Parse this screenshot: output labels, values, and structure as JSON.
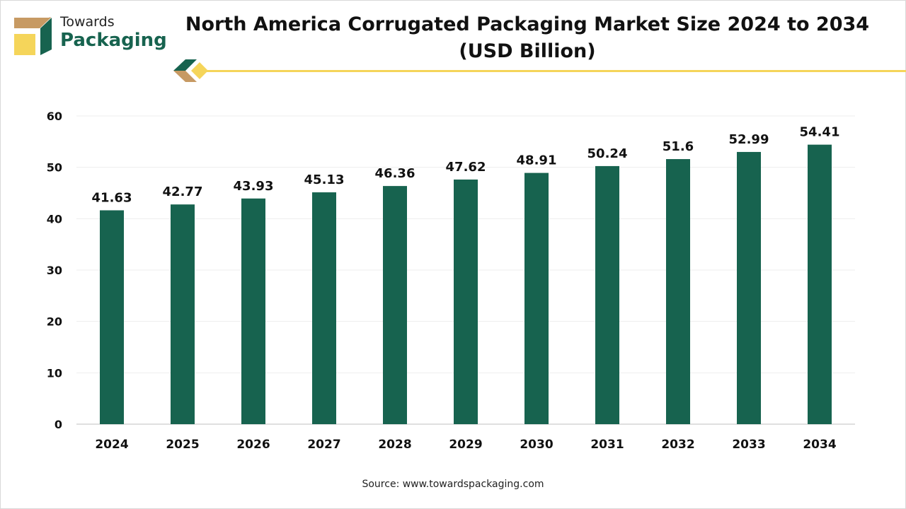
{
  "logo": {
    "line1": "Towards",
    "line2": "Packaging"
  },
  "colors": {
    "bar": "#17634f",
    "accent": "#f5d55a",
    "brown": "#c79a63"
  },
  "source": "Source: www.towardspackaging.com",
  "chart_data": {
    "type": "bar",
    "title": "North America Corrugated Packaging Market Size 2024 to 2034 (USD Billion)",
    "categories": [
      "2024",
      "2025",
      "2026",
      "2027",
      "2028",
      "2029",
      "2030",
      "2031",
      "2032",
      "2033",
      "2034"
    ],
    "values": [
      41.63,
      42.77,
      43.93,
      45.13,
      46.36,
      47.62,
      48.91,
      50.24,
      51.6,
      52.99,
      54.41
    ],
    "data_labels": [
      "41.63",
      "42.77",
      "43.93",
      "45.13",
      "46.36",
      "47.62",
      "48.91",
      "50.24",
      "51.6",
      "52.99",
      "54.41"
    ],
    "yticks": [
      "0",
      "10",
      "20",
      "30",
      "40",
      "50",
      "60"
    ],
    "ylim": [
      0,
      60
    ],
    "grid": true,
    "xlabel": "",
    "ylabel": ""
  }
}
